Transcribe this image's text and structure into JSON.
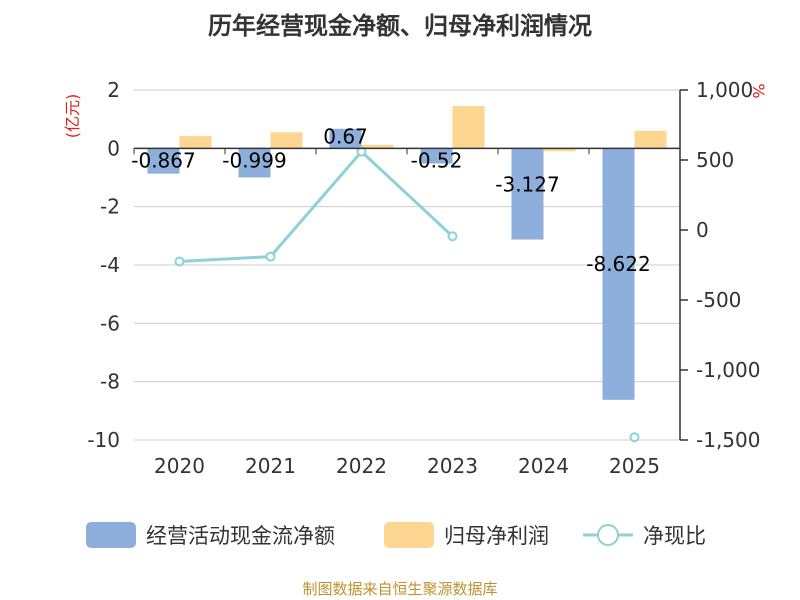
{
  "chart_data": {
    "type": "bar",
    "title": "历年经营现金净额、归母净利润情况",
    "categories": [
      "2020",
      "2021",
      "2022",
      "2023",
      "2024",
      "2025"
    ],
    "left_axis": {
      "unit": "(亿元)",
      "ylim": [
        -10,
        2
      ],
      "ticks": [
        2,
        0,
        -2,
        -4,
        -6,
        -8,
        -10
      ],
      "tick_labels": [
        "2",
        "0",
        "-2",
        "-4",
        "-6",
        "-8",
        "-10"
      ]
    },
    "right_axis": {
      "unit": "%",
      "ylim": [
        -1500,
        1000
      ],
      "ticks": [
        1000,
        500,
        0,
        -500,
        -1000,
        -1500
      ],
      "tick_labels": [
        "1,000",
        "500",
        "0",
        "-500",
        "-1,000",
        "-1,500"
      ]
    },
    "series": [
      {
        "name": "经营活动现金流净额",
        "kind": "bar",
        "axis": "left",
        "color": "#8eaedb",
        "values": [
          -0.867,
          -0.999,
          0.67,
          -0.52,
          -3.127,
          -8.622
        ],
        "labels": [
          "-0.867",
          "-0.999",
          "0.67",
          "-0.52",
          "-3.127",
          "-8.622"
        ]
      },
      {
        "name": "归母净利润",
        "kind": "bar",
        "axis": "left",
        "color": "#fdd692",
        "values": [
          0.42,
          0.55,
          0.12,
          1.45,
          -0.1,
          0.6
        ]
      },
      {
        "name": "净现比",
        "kind": "line",
        "axis": "right",
        "color": "#8dd1d8",
        "values": [
          -225,
          -190,
          560,
          -45,
          null,
          -1480
        ]
      }
    ],
    "legend": [
      "经营活动现金流净额",
      "归母净利润",
      "净现比"
    ]
  },
  "footer": "制图数据来自恒生聚源数据库"
}
